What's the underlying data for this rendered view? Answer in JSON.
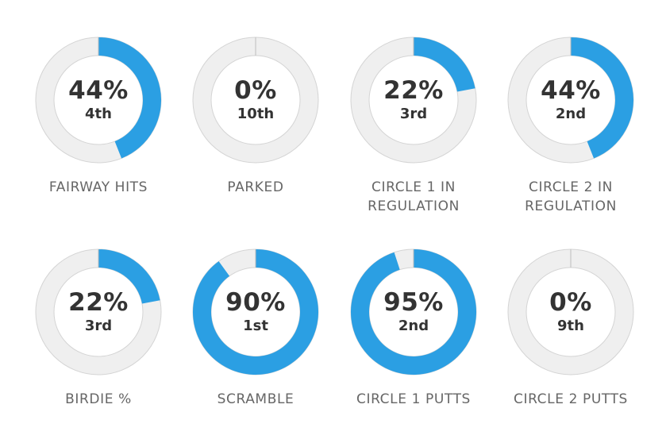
{
  "colors": {
    "accent": "#2b9fe3",
    "track": "#efefef",
    "track_border": "#d4d4d4",
    "text_dark": "#333333",
    "text_label": "#666666"
  },
  "chart_data": {
    "type": "donut",
    "items": [
      {
        "label": "FAIRWAY HITS",
        "value": 44,
        "value_text": "44%",
        "rank": "4th"
      },
      {
        "label": "PARKED",
        "value": 0,
        "value_text": "0%",
        "rank": "10th"
      },
      {
        "label": "CIRCLE 1 IN REGULATION",
        "value": 22,
        "value_text": "22%",
        "rank": "3rd"
      },
      {
        "label": "CIRCLE 2 IN REGULATION",
        "value": 44,
        "value_text": "44%",
        "rank": "2nd"
      },
      {
        "label": "BIRDIE %",
        "value": 22,
        "value_text": "22%",
        "rank": "3rd"
      },
      {
        "label": "SCRAMBLE",
        "value": 90,
        "value_text": "90%",
        "rank": "1st"
      },
      {
        "label": "CIRCLE 1 PUTTS",
        "value": 95,
        "value_text": "95%",
        "rank": "2nd"
      },
      {
        "label": "CIRCLE 2 PUTTS",
        "value": 0,
        "value_text": "0%",
        "rank": "9th"
      }
    ]
  }
}
